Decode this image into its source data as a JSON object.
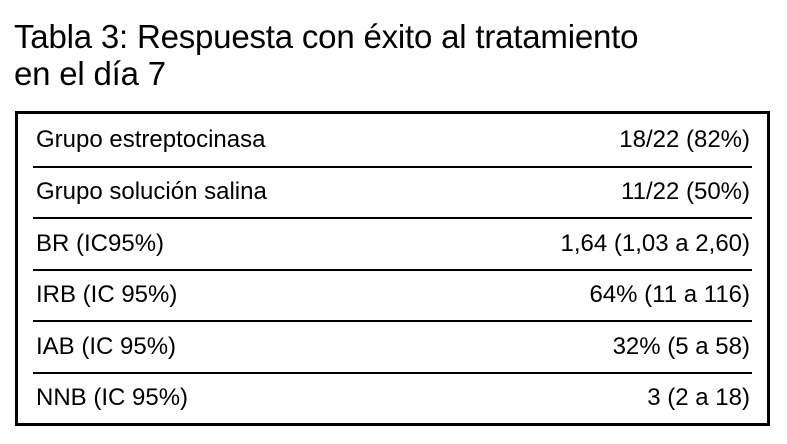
{
  "title": {
    "line1": "Tabla 3: Respuesta con éxito al tratamiento",
    "line2": "en el día 7"
  },
  "table": {
    "rows": [
      {
        "label": "Grupo estreptocinasa",
        "value": "18/22 (82%)"
      },
      {
        "label": "Grupo solución salina",
        "value": "11/22 (50%)"
      },
      {
        "label": "BR (IC95%)",
        "value": "1,64 (1,03 a 2,60)"
      },
      {
        "label": "IRB (IC 95%)",
        "value": "64% (11 a 116)"
      },
      {
        "label": "IAB (IC 95%)",
        "value": "32% (5 a 58)"
      },
      {
        "label": "NNB (IC 95%)",
        "value": "3 (2 a 18)"
      }
    ]
  }
}
